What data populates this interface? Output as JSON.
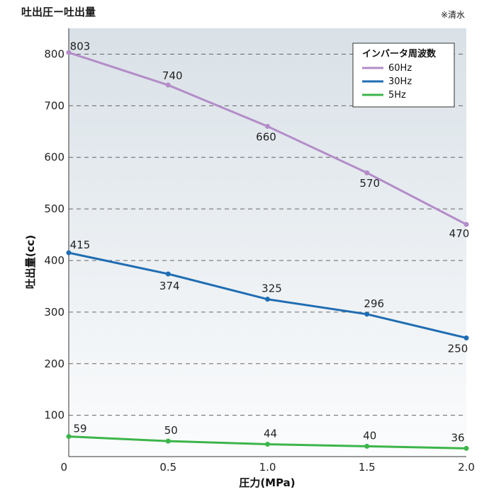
{
  "header": {
    "title": "吐出圧ー吐出量",
    "note": "※清水"
  },
  "chart_data": {
    "type": "line",
    "title": "吐出圧ー吐出量",
    "xlabel": "圧力(MPa)",
    "ylabel": "吐出量(cc)",
    "x": [
      0,
      0.5,
      1.0,
      1.5,
      2.0
    ],
    "x_tick_labels": [
      "0",
      "0.5",
      "1.0",
      "1.5",
      "2.0"
    ],
    "y_ticks": [
      100,
      200,
      300,
      400,
      500,
      600,
      700,
      800
    ],
    "xlim": [
      0,
      2.0
    ],
    "ylim": [
      20,
      850
    ],
    "grid": "horizontal dashed",
    "legend_title": "インバータ周波数",
    "legend_position": "top-right",
    "series": [
      {
        "name": "60Hz",
        "color": "#b38cc8",
        "values": [
          803,
          740,
          660,
          570,
          470
        ]
      },
      {
        "name": "30Hz",
        "color": "#1f6db3",
        "values": [
          415,
          374,
          325,
          296,
          250
        ]
      },
      {
        "name": "5Hz",
        "color": "#3cb54a",
        "values": [
          59,
          50,
          44,
          40,
          36
        ]
      }
    ]
  }
}
